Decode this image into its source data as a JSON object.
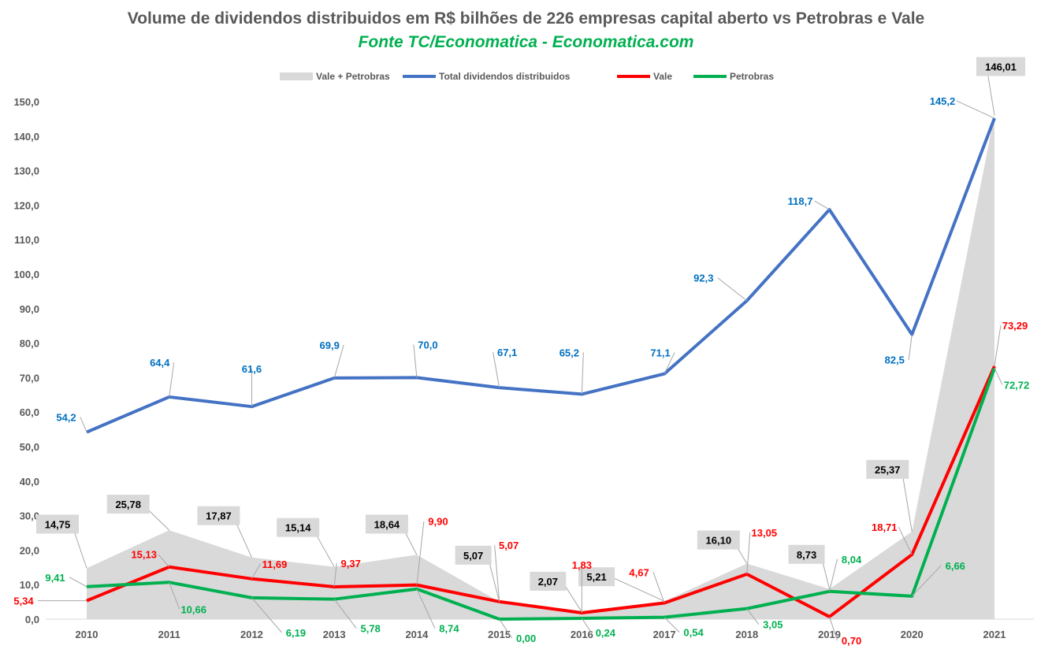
{
  "title": "Volume de dividendos distribuidos em R$ bilhões de 226 empresas capital aberto vs Petrobras e Vale",
  "subtitle": "Fonte TC/Economatica - Economatica.com",
  "chart_data": {
    "type": "line",
    "categories": [
      "2010",
      "2011",
      "2012",
      "2013",
      "2014",
      "2015",
      "2016",
      "2017",
      "2018",
      "2019",
      "2020",
      "2021"
    ],
    "ylim": [
      0,
      150
    ],
    "yticks": [
      "0,0",
      "10,0",
      "20,0",
      "30,0",
      "40,0",
      "50,0",
      "60,0",
      "70,0",
      "80,0",
      "90,0",
      "100,0",
      "110,0",
      "120,0",
      "130,0",
      "140,0",
      "150,0"
    ],
    "grid": false,
    "legend_position": "top",
    "series": [
      {
        "name": "Vale + Petrobras",
        "kind": "area",
        "color": "#d9d9d9",
        "label_color": "#000000",
        "values": [
          14.75,
          25.78,
          17.87,
          15.14,
          18.64,
          5.07,
          2.07,
          5.21,
          16.1,
          8.73,
          25.37,
          146.01
        ],
        "labels": [
          "14,75",
          "25,78",
          "17,87",
          "15,14",
          "18,64",
          "5,07",
          "2,07",
          "5,21",
          "16,10",
          "8,73",
          "25,37",
          "146,01"
        ]
      },
      {
        "name": "Total dividendos distribuidos",
        "kind": "line",
        "color": "#4472c4",
        "label_color": "#0070c0",
        "values": [
          54.2,
          64.4,
          61.6,
          69.9,
          70.0,
          67.1,
          65.2,
          71.1,
          92.3,
          118.7,
          82.5,
          145.2
        ],
        "labels": [
          "54,2",
          "64,4",
          "61,6",
          "69,9",
          "70,0",
          "67,1",
          "65,2",
          "71,1",
          "92,3",
          "118,7",
          "82,5",
          "145,2"
        ]
      },
      {
        "name": "Vale",
        "kind": "line",
        "color": "#ff0000",
        "label_color": "#ff0000",
        "values": [
          5.34,
          15.13,
          11.69,
          9.37,
          9.9,
          5.07,
          1.83,
          4.67,
          13.05,
          0.7,
          18.71,
          73.29
        ],
        "labels": [
          "5,34",
          "15,13",
          "11,69",
          "9,37",
          "9,90",
          "5,07",
          "1,83",
          "4,67",
          "13,05",
          "0,70",
          "18,71",
          "73,29"
        ]
      },
      {
        "name": "Petrobras",
        "kind": "line",
        "color": "#00b050",
        "label_color": "#00b050",
        "values": [
          9.41,
          10.66,
          6.19,
          5.78,
          8.74,
          0.0,
          0.24,
          0.54,
          3.05,
          8.04,
          6.66,
          72.72
        ],
        "labels": [
          "9,41",
          "10,66",
          "6,19",
          "5,78",
          "8,74",
          "0,00",
          "0,24",
          "0,54",
          "3,05",
          "8,04",
          "6,66",
          "72,72"
        ]
      }
    ]
  }
}
